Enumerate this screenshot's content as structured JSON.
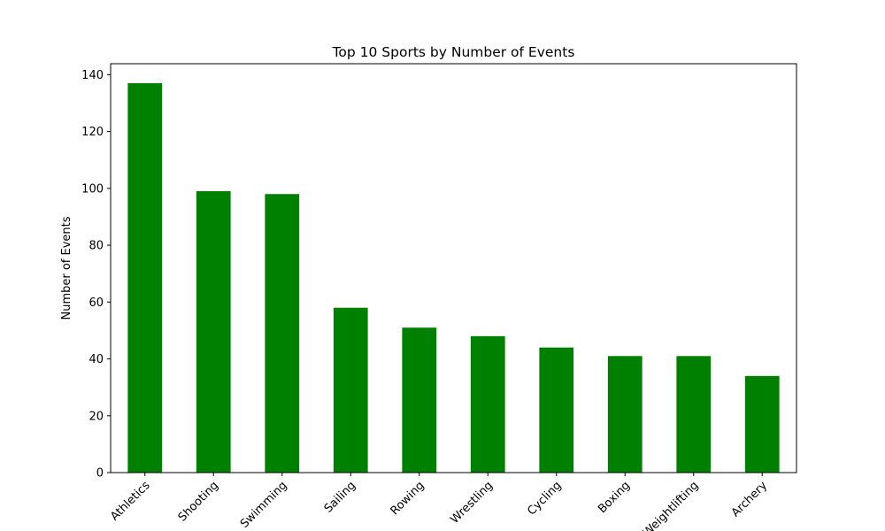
{
  "chart_data": {
    "type": "bar",
    "title": "Top 10 Sports by Number of Events",
    "xlabel": "",
    "ylabel": "Number of Events",
    "categories": [
      "Athletics",
      "Shooting",
      "Swimming",
      "Sailing",
      "Rowing",
      "Wrestling",
      "Cycling",
      "Boxing",
      "Weightlifting",
      "Archery"
    ],
    "values": [
      137,
      99,
      98,
      58,
      51,
      48,
      44,
      41,
      41,
      34
    ],
    "ylim": [
      0,
      143.85
    ],
    "yticks": [
      0,
      20,
      40,
      60,
      80,
      100,
      120,
      140
    ],
    "bar_color": "#008000",
    "grid": false,
    "legend": "none"
  }
}
